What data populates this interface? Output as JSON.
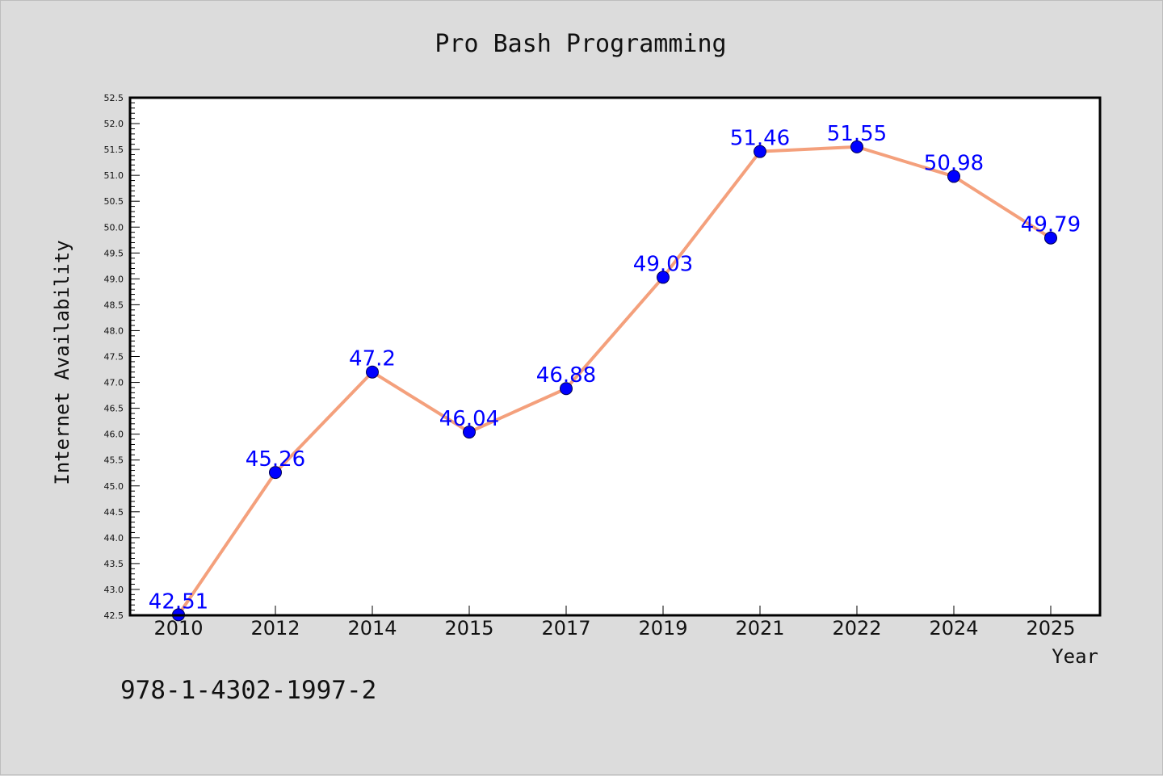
{
  "chart_data": {
    "type": "line",
    "title": "Pro Bash Programming",
    "xlabel": "Year",
    "ylabel": "Internet Availability",
    "categories": [
      "2010",
      "2012",
      "2014",
      "2015",
      "2017",
      "2019",
      "2021",
      "2022",
      "2024",
      "2025"
    ],
    "series": [
      {
        "values": [
          42.51,
          45.26,
          47.2,
          46.04,
          46.88,
          49.03,
          51.46,
          51.55,
          50.98,
          49.79
        ],
        "data_labels": [
          "42.51",
          "45.26",
          "47.2",
          "46.04",
          "46.88",
          "49.03",
          "51.46",
          "51.55",
          "50.98",
          "49.79"
        ],
        "line_color": "#f4a07c",
        "marker_color": "#0000ff"
      }
    ],
    "ylim": [
      42.5,
      52.5
    ],
    "yticks": [
      "42.5",
      "43.0",
      "43.5",
      "44.0",
      "44.5",
      "45.0",
      "45.5",
      "46.0",
      "46.5",
      "47.0",
      "47.5",
      "48.0",
      "48.5",
      "49.0",
      "49.5",
      "50.0",
      "50.5",
      "51.0",
      "51.5",
      "52.0",
      "52.5"
    ],
    "grid": false,
    "legend": "none",
    "annotation": "978-1-4302-1997-2",
    "colors": {
      "background": "#dcdcdc",
      "plot_background": "#ffffff",
      "label_color": "#0000ff"
    }
  }
}
